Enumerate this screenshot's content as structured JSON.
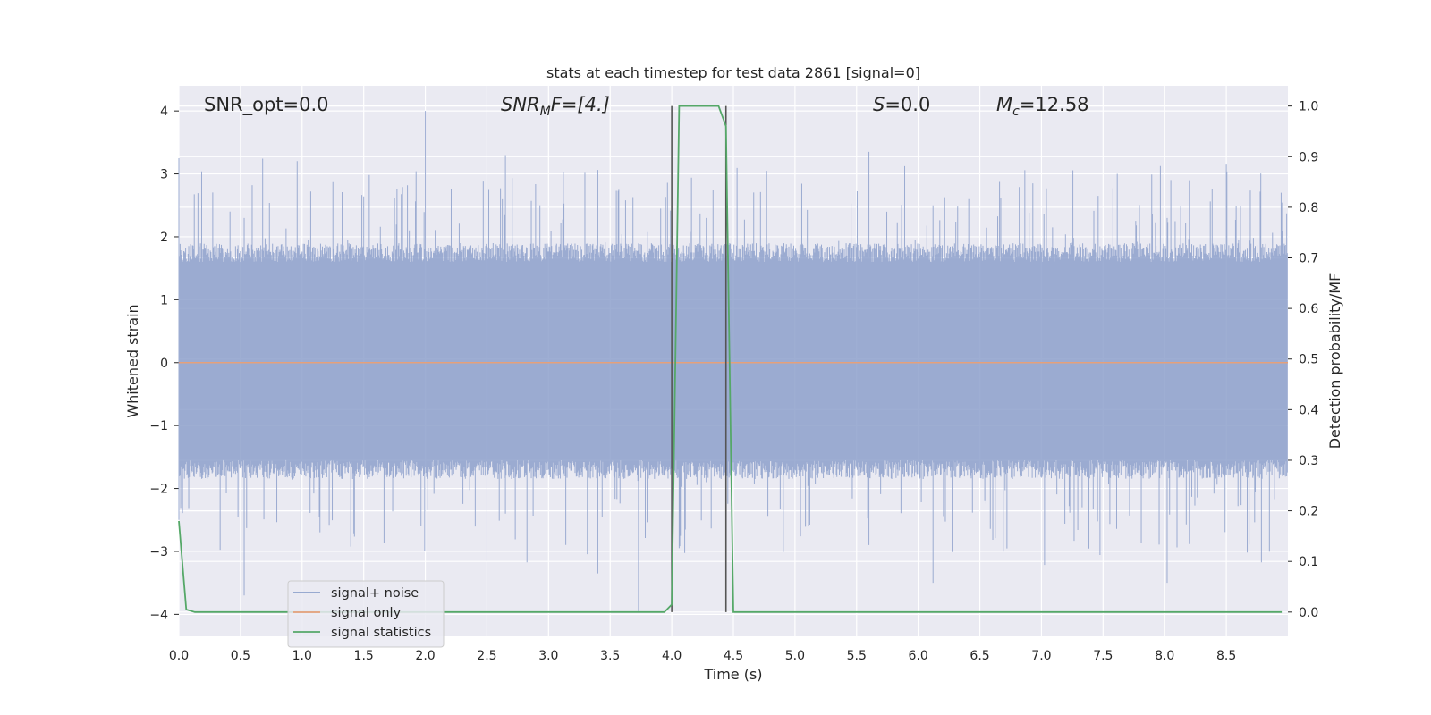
{
  "chart_data": {
    "type": "line",
    "title": "stats at each timestep for test data 2861 [signal=0]",
    "xlabel": "Time (s)",
    "ylabel_left": "Whitened strain",
    "ylabel_right": "Detection probability/MF",
    "xlim": [
      0.0,
      9.0
    ],
    "ylim_left": [
      -4.35,
      4.4
    ],
    "ylim_right": [
      -0.048,
      1.04
    ],
    "xticks": [
      "0.0",
      "0.5",
      "1.0",
      "1.5",
      "2.0",
      "2.5",
      "3.0",
      "3.5",
      "4.0",
      "4.5",
      "5.0",
      "5.5",
      "6.0",
      "6.5",
      "7.0",
      "7.5",
      "8.0",
      "8.5"
    ],
    "yticks_left": [
      "4",
      "3",
      "2",
      "1",
      "0",
      "−1",
      "−2",
      "−3",
      "−4"
    ],
    "yticks_right": [
      "1.0",
      "0.9",
      "0.8",
      "0.7",
      "0.6",
      "0.5",
      "0.4",
      "0.3",
      "0.2",
      "0.1",
      "0.0"
    ],
    "grid": true,
    "legend_position": "lower-left",
    "series": [
      {
        "name": "signal+ noise",
        "color": "#8da0cb",
        "description_values": "noise, amplitude ~ ±1.6 with spikes up to 4.0 and down to −3.95",
        "peak_max": 4.0,
        "peak_min": -3.95,
        "typical_amplitude": 1.6
      },
      {
        "name": "signal only",
        "color": "#e5a07a",
        "values_constant": 0.0
      },
      {
        "name": "signal statistics",
        "color": "#55a868",
        "x": [
          0.0,
          0.06,
          0.13,
          0.5,
          1.0,
          2.0,
          3.0,
          3.5,
          3.94,
          4.0,
          4.06,
          4.38,
          4.44,
          4.5,
          5.0,
          6.0,
          7.0,
          8.0,
          8.95
        ],
        "values": [
          0.18,
          0.005,
          0.0,
          0.0,
          0.0,
          0.0,
          0.0,
          0.0,
          0.0,
          0.015,
          1.0,
          1.0,
          0.96,
          0.0,
          0.0,
          0.0,
          0.0,
          0.0,
          0.0
        ]
      }
    ],
    "vlines_x": [
      4.0,
      4.44
    ],
    "annotations": {
      "snr_opt": "SNR_opt=0.0",
      "snr_mf_main": "SNR",
      "snr_mf_sub": "M",
      "snr_mf_rest": "F=[4.]",
      "s_main": "S",
      "s_rest": "=0.0",
      "mc_main": "M",
      "mc_sub": "c",
      "mc_rest": "=12.58"
    }
  }
}
